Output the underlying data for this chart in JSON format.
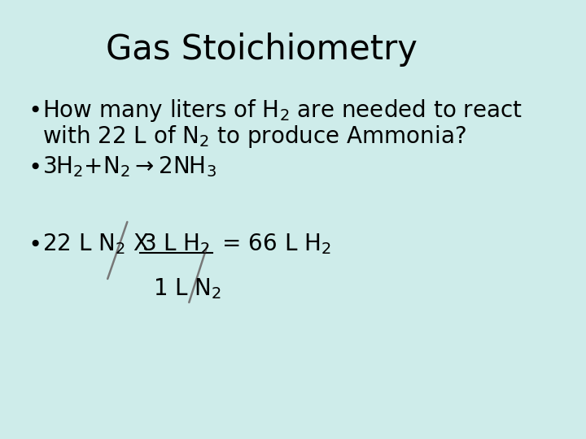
{
  "title": "Gas Stoichiometry",
  "bg_color": "#ceecea",
  "text_color": "#000000",
  "title_fontsize": 30,
  "body_fontsize": 20,
  "font_family": "DejaVu Sans",
  "slash_color": "#777777"
}
